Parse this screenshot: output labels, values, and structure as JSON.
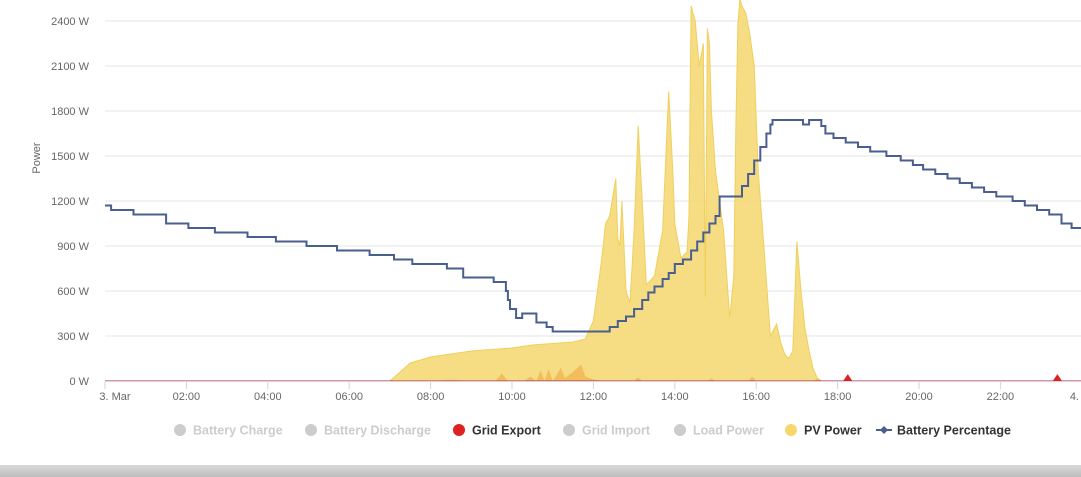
{
  "chart_data": {
    "type": "area",
    "ylabel": "Power",
    "ylim": [
      0,
      2550
    ],
    "x_range": [
      "3. Mar 00:00",
      "4. Mar 00:00"
    ],
    "x_ticks": [
      "3. Mar",
      "02:00",
      "04:00",
      "06:00",
      "08:00",
      "10:00",
      "12:00",
      "14:00",
      "16:00",
      "18:00",
      "20:00",
      "22:00",
      "4."
    ],
    "y_ticks": [
      "0 W",
      "300 W",
      "600 W",
      "900 W",
      "1200 W",
      "1500 W",
      "1800 W",
      "2100 W",
      "2400 W"
    ],
    "y_tick_values": [
      0,
      300,
      600,
      900,
      1200,
      1500,
      1800,
      2100,
      2400
    ],
    "grid": true,
    "legend_position": "bottom-center",
    "legend": [
      {
        "name": "Battery Charge",
        "color": "#cccccc",
        "visible": false,
        "marker": "circle"
      },
      {
        "name": "Battery Discharge",
        "color": "#cccccc",
        "visible": false,
        "marker": "circle"
      },
      {
        "name": "Grid Export",
        "color": "#dd2222",
        "visible": true,
        "marker": "circle"
      },
      {
        "name": "Grid Import",
        "color": "#cccccc",
        "visible": false,
        "marker": "circle"
      },
      {
        "name": "Load Power",
        "color": "#cccccc",
        "visible": false,
        "marker": "circle"
      },
      {
        "name": "PV Power",
        "color": "#f5d76e",
        "visible": true,
        "marker": "circle"
      },
      {
        "name": "Battery Percentage",
        "color": "#4a5f8f",
        "visible": true,
        "marker": "line-diamond"
      }
    ],
    "series": [
      {
        "name": "PV Power",
        "color": "#f5d76e",
        "x_hours": [
          0,
          7.0,
          7.5,
          8.0,
          8.5,
          9.0,
          9.5,
          10.0,
          10.5,
          11.0,
          11.5,
          11.8,
          12.0,
          12.2,
          12.3,
          12.4,
          12.55,
          12.6,
          12.65,
          12.7,
          12.8,
          12.9,
          13.0,
          13.1,
          13.2,
          13.3,
          13.5,
          13.7,
          13.85,
          13.95,
          14.0,
          14.15,
          14.3,
          14.35,
          14.4,
          14.5,
          14.6,
          14.7,
          14.75,
          14.8,
          14.85,
          14.9,
          15.0,
          15.2,
          15.35,
          15.45,
          15.5,
          15.55,
          15.6,
          15.65,
          15.75,
          15.85,
          15.95,
          16.05,
          16.2,
          16.35,
          16.5,
          16.6,
          16.7,
          16.8,
          16.9,
          17.0,
          17.1,
          17.2,
          17.3,
          17.4,
          17.5,
          17.6,
          17.8,
          18.0,
          24
        ],
        "values": [
          0,
          0,
          120,
          160,
          180,
          200,
          210,
          220,
          240,
          250,
          260,
          280,
          400,
          800,
          1050,
          1100,
          1350,
          950,
          900,
          1200,
          600,
          520,
          1000,
          1700,
          1200,
          640,
          700,
          1000,
          1930,
          1400,
          1050,
          820,
          860,
          1100,
          2500,
          2400,
          2100,
          2250,
          560,
          2350,
          2250,
          1800,
          1400,
          1000,
          420,
          700,
          1700,
          2380,
          2550,
          2500,
          2450,
          2300,
          2100,
          1400,
          860,
          300,
          380,
          260,
          180,
          150,
          200,
          930,
          600,
          350,
          200,
          80,
          20,
          0,
          0,
          0,
          0
        ]
      },
      {
        "name": "Grid Export",
        "color": "#dd2222",
        "x_hours": [
          0,
          18.15,
          18.25,
          18.35,
          23.3,
          23.4,
          23.5,
          24
        ],
        "values": [
          0,
          0,
          40,
          0,
          0,
          40,
          0,
          0
        ]
      },
      {
        "name": "Battery Percentage",
        "color": "#4a5f8f",
        "step_points": [
          [
            0.0,
            1170
          ],
          [
            0.15,
            1140
          ],
          [
            0.7,
            1110
          ],
          [
            1.5,
            1050
          ],
          [
            2.05,
            1020
          ],
          [
            2.7,
            990
          ],
          [
            3.5,
            960
          ],
          [
            4.2,
            930
          ],
          [
            4.95,
            900
          ],
          [
            5.7,
            870
          ],
          [
            6.5,
            840
          ],
          [
            7.1,
            810
          ],
          [
            7.55,
            780
          ],
          [
            8.4,
            750
          ],
          [
            8.8,
            690
          ],
          [
            9.55,
            660
          ],
          [
            9.85,
            600
          ],
          [
            9.9,
            540
          ],
          [
            9.95,
            480
          ],
          [
            10.1,
            420
          ],
          [
            10.25,
            450
          ],
          [
            10.6,
            390
          ],
          [
            10.85,
            360
          ],
          [
            11.0,
            330
          ],
          [
            12.0,
            330
          ],
          [
            12.4,
            360
          ],
          [
            12.6,
            400
          ],
          [
            12.8,
            430
          ],
          [
            13.0,
            480
          ],
          [
            13.2,
            540
          ],
          [
            13.35,
            590
          ],
          [
            13.5,
            630
          ],
          [
            13.7,
            680
          ],
          [
            13.85,
            720
          ],
          [
            14.0,
            780
          ],
          [
            14.2,
            810
          ],
          [
            14.4,
            870
          ],
          [
            14.55,
            930
          ],
          [
            14.7,
            990
          ],
          [
            14.85,
            1050
          ],
          [
            15.0,
            1100
          ],
          [
            15.1,
            1230
          ],
          [
            15.5,
            1230
          ],
          [
            15.65,
            1300
          ],
          [
            15.8,
            1380
          ],
          [
            15.95,
            1470
          ],
          [
            16.1,
            1560
          ],
          [
            16.25,
            1650
          ],
          [
            16.35,
            1710
          ],
          [
            16.4,
            1740
          ],
          [
            17.15,
            1710
          ],
          [
            17.3,
            1740
          ],
          [
            17.6,
            1700
          ],
          [
            17.7,
            1650
          ],
          [
            17.9,
            1620
          ],
          [
            18.2,
            1590
          ],
          [
            18.5,
            1560
          ],
          [
            18.8,
            1530
          ],
          [
            19.2,
            1500
          ],
          [
            19.55,
            1470
          ],
          [
            19.85,
            1440
          ],
          [
            20.1,
            1410
          ],
          [
            20.4,
            1380
          ],
          [
            20.7,
            1350
          ],
          [
            21.0,
            1320
          ],
          [
            21.3,
            1290
          ],
          [
            21.6,
            1260
          ],
          [
            21.9,
            1230
          ],
          [
            22.3,
            1200
          ],
          [
            22.6,
            1170
          ],
          [
            22.9,
            1140
          ],
          [
            23.2,
            1110
          ],
          [
            23.5,
            1050
          ],
          [
            23.75,
            1020
          ],
          [
            24.2,
            1020
          ]
        ]
      }
    ]
  }
}
